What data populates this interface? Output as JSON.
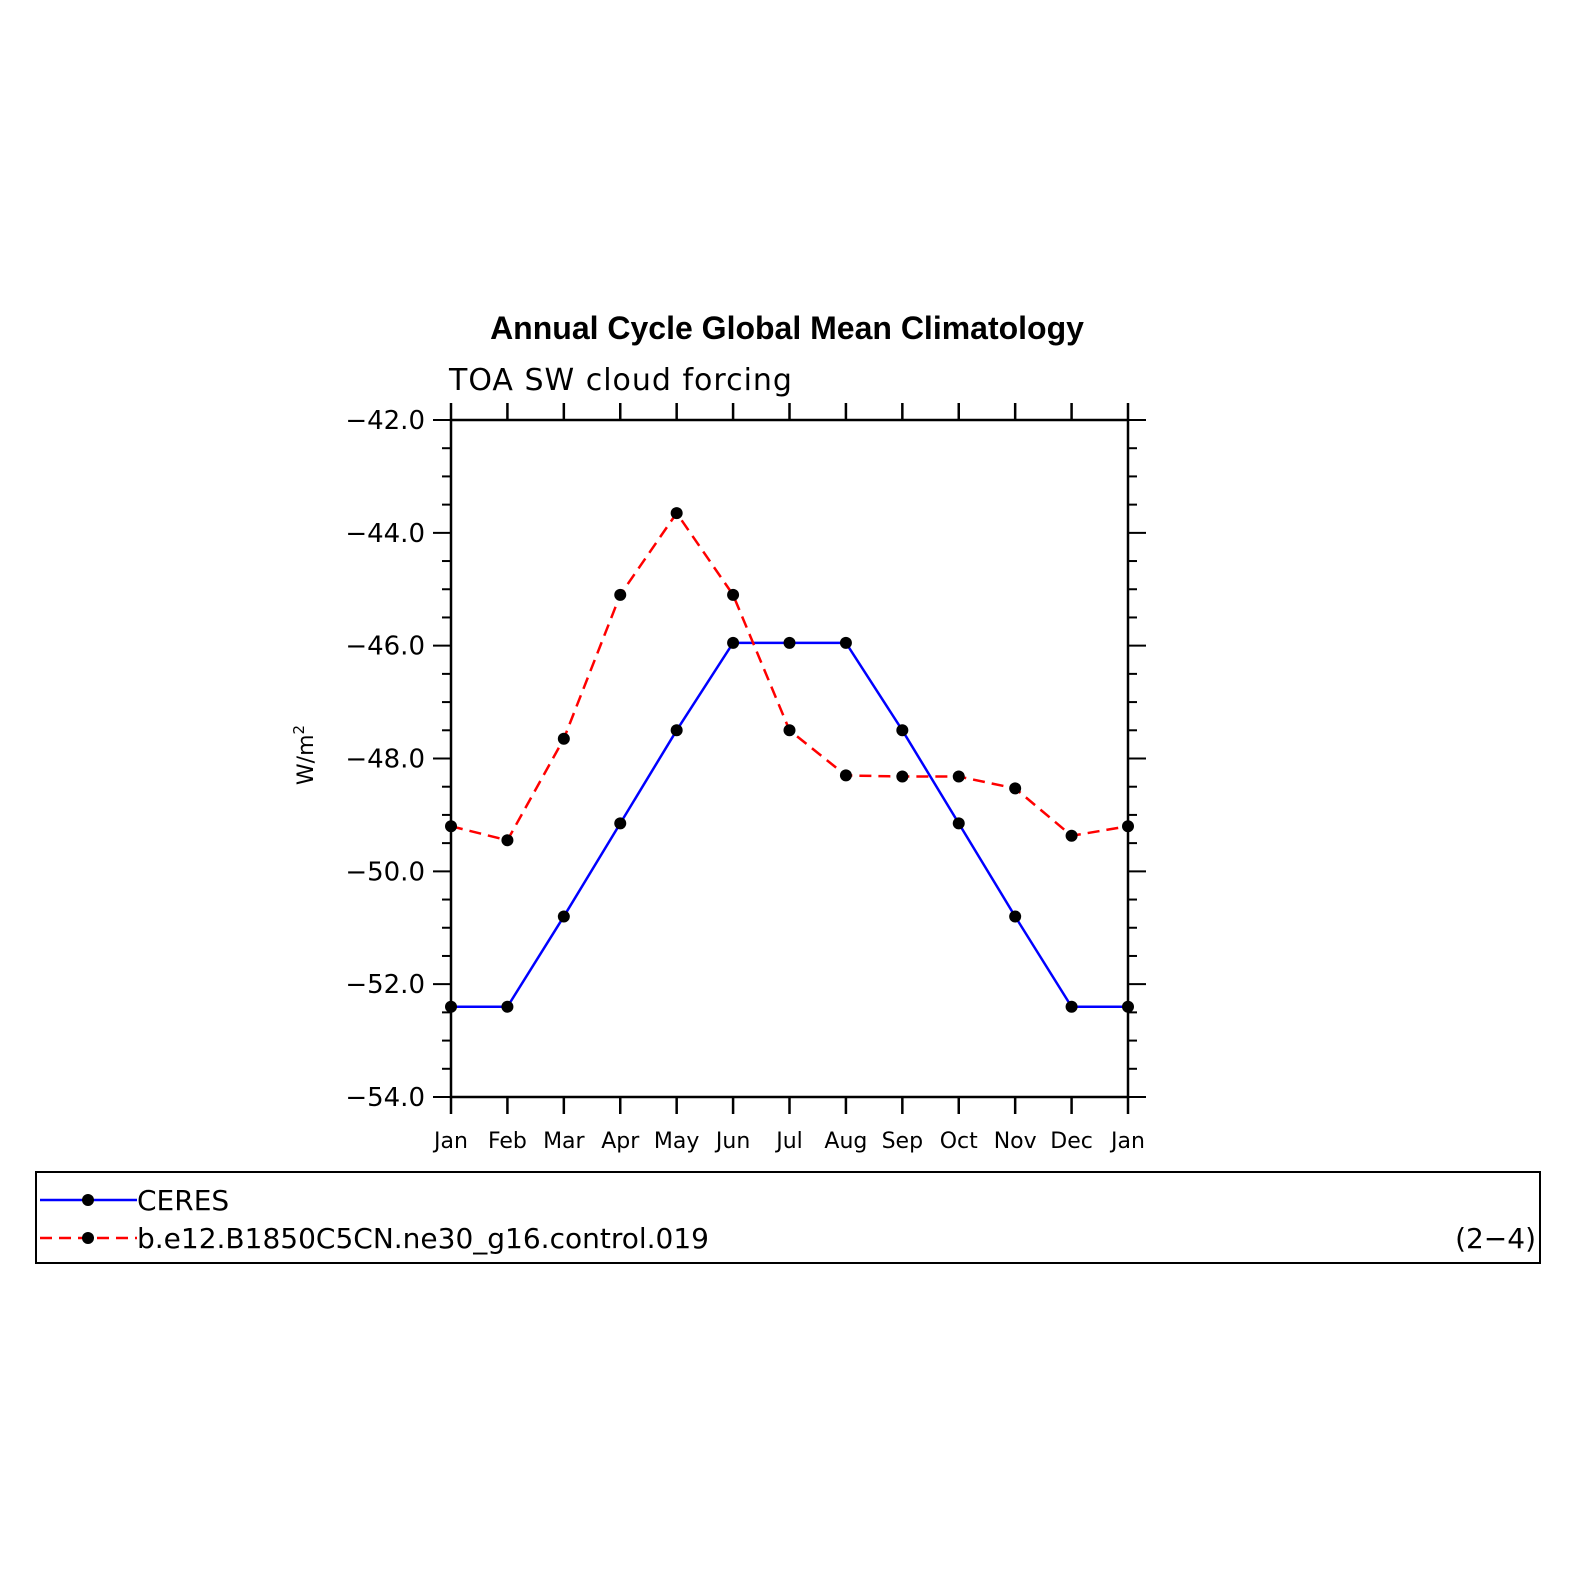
{
  "chart_data": {
    "type": "line",
    "title": "Annual Cycle Global Mean Climatology",
    "subtitle": "TOA SW cloud forcing",
    "ylabel": "W/m",
    "ylabel_superscript": "2",
    "xlabel": "",
    "categories": [
      "Jan",
      "Feb",
      "Mar",
      "Apr",
      "May",
      "Jun",
      "Jul",
      "Aug",
      "Sep",
      "Oct",
      "Nov",
      "Dec",
      "Jan"
    ],
    "ylim": [
      -54.0,
      -42.0
    ],
    "yticks": [
      "-42.0",
      "-44.0",
      "-46.0",
      "-48.0",
      "-50.0",
      "-52.0",
      "-54.0"
    ],
    "ytick_values": [
      -42.0,
      -44.0,
      -46.0,
      -48.0,
      -50.0,
      -52.0,
      -54.0
    ],
    "series": [
      {
        "name": "CERES",
        "color": "#0000ff",
        "dash": "solid",
        "values": [
          -52.4,
          -52.4,
          -50.8,
          -49.15,
          -47.5,
          -45.95,
          -45.95,
          -45.95,
          -47.5,
          -49.15,
          -50.8,
          -52.4,
          -52.4
        ]
      },
      {
        "name": "b.e12.B1850C5CN.ne30_g16.control.019",
        "color": "#ff0000",
        "dash": "dashed",
        "values": [
          -49.2,
          -49.45,
          -47.65,
          -45.1,
          -43.65,
          -45.1,
          -47.5,
          -48.3,
          -48.32,
          -48.32,
          -48.53,
          -49.37,
          -49.2
        ]
      }
    ],
    "legend_placement": "bottom",
    "panel_label": "(2−4)"
  }
}
